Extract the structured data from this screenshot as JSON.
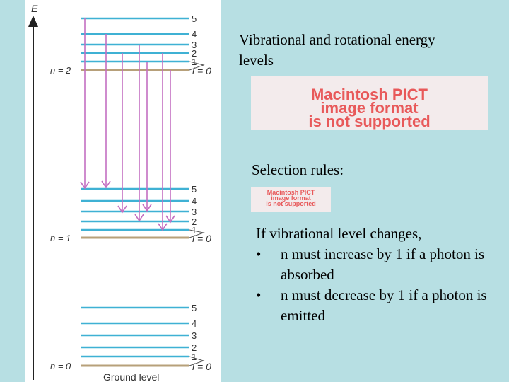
{
  "diagram": {
    "energy_axis_label": "E",
    "vib_groups": [
      {
        "n_label": "n = 2",
        "l_label": "l = 0",
        "j_labels": [
          "5",
          "4",
          "3",
          "2",
          "1"
        ]
      },
      {
        "n_label": "n = 1",
        "l_label": "l = 0",
        "j_labels": [
          "5",
          "4",
          "3",
          "2",
          "1"
        ]
      },
      {
        "n_label": "n = 0",
        "l_label": "l = 0",
        "j_labels": [
          "5",
          "4",
          "3",
          "2",
          "1"
        ]
      }
    ],
    "ground_label": "Ground level"
  },
  "text_panel": {
    "title": "Vibrational and rotational energy levels",
    "pict_large_lines": [
      "Macintosh PICT",
      "image format",
      "is not supported"
    ],
    "selection_heading": "Selection rules:",
    "pict_small_lines": [
      "Macintosh PICT",
      "image format",
      "is not supported"
    ],
    "rules_intro": "If vibrational level changes,",
    "rules": [
      {
        "bullet": "•",
        "text": "n must increase by 1 if a photon is absorbed"
      },
      {
        "bullet": "•",
        "text": "n must decrease by 1 if a photon is emitted"
      }
    ]
  },
  "colors": {
    "level_line": "#3fb1d4",
    "ground_line": "#b7a07a",
    "transition": "#c36fc1",
    "axis": "#222222"
  }
}
